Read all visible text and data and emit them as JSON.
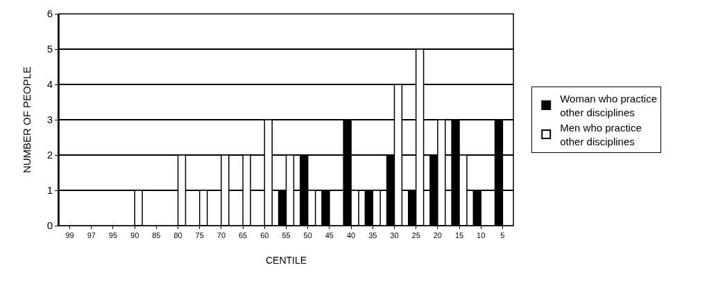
{
  "chart_data": {
    "type": "bar",
    "xlabel": "CENTILE",
    "ylabel": "NUMBER OF PEOPLE",
    "categories": [
      "99",
      "97",
      "95",
      "90",
      "85",
      "80",
      "75",
      "70",
      "65",
      "60",
      "55",
      "50",
      "45",
      "40",
      "35",
      "30",
      "25",
      "20",
      "15",
      "10",
      "5"
    ],
    "series": [
      {
        "name": "Woman who practice other disciplines",
        "color": "#000000",
        "values": [
          0,
          0,
          0,
          0,
          0,
          0,
          0,
          0,
          0,
          0,
          1,
          2,
          1,
          3,
          1,
          2,
          1,
          2,
          3,
          1,
          3
        ]
      },
      {
        "name": "Men who practice other disciplines",
        "color": "#ffffff",
        "values": [
          0,
          0,
          0,
          1,
          0,
          2,
          1,
          2,
          2,
          3,
          2,
          1,
          0,
          1,
          1,
          4,
          5,
          3,
          2,
          0,
          0
        ]
      }
    ],
    "ylim": [
      0,
      6
    ],
    "yticks": [
      0,
      1,
      2,
      3,
      4,
      5,
      6
    ],
    "grid": "y",
    "legend": "right"
  }
}
